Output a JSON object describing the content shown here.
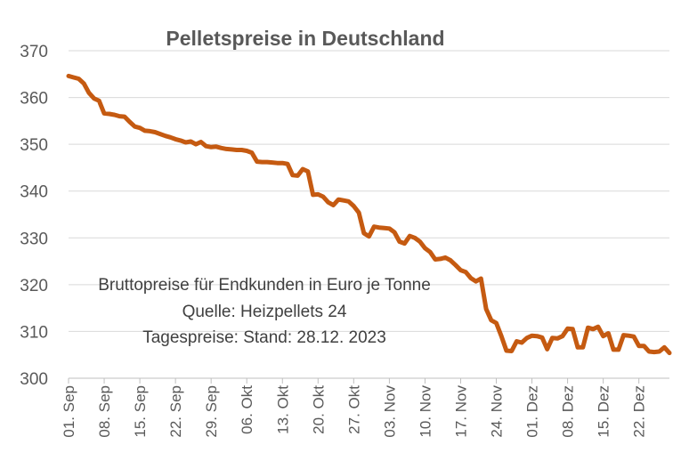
{
  "chart_data": {
    "type": "line",
    "title": "Pelletspreise in Deutschland",
    "ylim": [
      300,
      370
    ],
    "yticks": [
      "300",
      "310",
      "320",
      "330",
      "340",
      "350",
      "360",
      "370"
    ],
    "grid": true,
    "x_tick_labels": [
      "01. Sep",
      "08. Sep",
      "15. Sep",
      "22. Sep",
      "29. Sep",
      "06. Okt",
      "13. Okt",
      "20. Okt",
      "27. Okt",
      "03. Nov",
      "10. Nov",
      "17. Nov",
      "24. Nov",
      "01. Dez",
      "08. Dez",
      "15. Dez",
      "22. Dez"
    ],
    "x_start": "2023-09-01",
    "x_end": "2023-12-28",
    "annotation_lines": [
      "Bruttopreise für Endkunden in Euro je Tonne",
      "Quelle: Heizpellets 24",
      "Tagespreise: Stand: 28.12. 2023"
    ],
    "series": [
      {
        "color": "#c55a11",
        "points": [
          [
            "2023-09-01",
            364.6
          ],
          [
            "2023-09-02",
            364.3
          ],
          [
            "2023-09-03",
            364.0
          ],
          [
            "2023-09-04",
            363.0
          ],
          [
            "2023-09-05",
            361.0
          ],
          [
            "2023-09-06",
            359.8
          ],
          [
            "2023-09-07",
            359.3
          ],
          [
            "2023-09-08",
            356.6
          ],
          [
            "2023-09-09",
            356.5
          ],
          [
            "2023-09-10",
            356.3
          ],
          [
            "2023-09-11",
            356.0
          ],
          [
            "2023-09-12",
            355.9
          ],
          [
            "2023-09-13",
            354.8
          ],
          [
            "2023-09-14",
            353.8
          ],
          [
            "2023-09-15",
            353.5
          ],
          [
            "2023-09-16",
            352.9
          ],
          [
            "2023-09-17",
            352.8
          ],
          [
            "2023-09-18",
            352.6
          ],
          [
            "2023-09-19",
            352.2
          ],
          [
            "2023-09-20",
            351.8
          ],
          [
            "2023-09-21",
            351.5
          ],
          [
            "2023-09-22",
            351.1
          ],
          [
            "2023-09-23",
            350.8
          ],
          [
            "2023-09-24",
            350.4
          ],
          [
            "2023-09-25",
            350.6
          ],
          [
            "2023-09-26",
            350.0
          ],
          [
            "2023-09-27",
            350.5
          ],
          [
            "2023-09-28",
            349.6
          ],
          [
            "2023-09-29",
            349.4
          ],
          [
            "2023-09-30",
            349.5
          ],
          [
            "2023-10-01",
            349.2
          ],
          [
            "2023-10-02",
            349.0
          ],
          [
            "2023-10-03",
            348.9
          ],
          [
            "2023-10-04",
            348.8
          ],
          [
            "2023-10-05",
            348.8
          ],
          [
            "2023-10-06",
            348.6
          ],
          [
            "2023-10-07",
            348.2
          ],
          [
            "2023-10-08",
            346.3
          ],
          [
            "2023-10-09",
            346.2
          ],
          [
            "2023-10-10",
            346.2
          ],
          [
            "2023-10-11",
            346.1
          ],
          [
            "2023-10-12",
            346.0
          ],
          [
            "2023-10-13",
            346.0
          ],
          [
            "2023-10-14",
            345.8
          ],
          [
            "2023-10-15",
            343.4
          ],
          [
            "2023-10-16",
            343.3
          ],
          [
            "2023-10-17",
            344.7
          ],
          [
            "2023-10-18",
            344.2
          ],
          [
            "2023-10-19",
            339.2
          ],
          [
            "2023-10-20",
            339.3
          ],
          [
            "2023-10-21",
            338.8
          ],
          [
            "2023-10-22",
            337.6
          ],
          [
            "2023-10-23",
            337.0
          ],
          [
            "2023-10-24",
            338.2
          ],
          [
            "2023-10-25",
            338.0
          ],
          [
            "2023-10-26",
            337.8
          ],
          [
            "2023-10-27",
            336.8
          ],
          [
            "2023-10-28",
            335.4
          ],
          [
            "2023-10-29",
            331.0
          ],
          [
            "2023-10-30",
            330.3
          ],
          [
            "2023-10-31",
            332.4
          ],
          [
            "2023-11-01",
            332.2
          ],
          [
            "2023-11-02",
            332.1
          ],
          [
            "2023-11-03",
            332.0
          ],
          [
            "2023-11-04",
            331.2
          ],
          [
            "2023-11-05",
            329.2
          ],
          [
            "2023-11-06",
            328.8
          ],
          [
            "2023-11-07",
            330.4
          ],
          [
            "2023-11-08",
            330.0
          ],
          [
            "2023-11-09",
            329.2
          ],
          [
            "2023-11-10",
            327.8
          ],
          [
            "2023-11-11",
            327.0
          ],
          [
            "2023-11-12",
            325.4
          ],
          [
            "2023-11-13",
            325.5
          ],
          [
            "2023-11-14",
            325.8
          ],
          [
            "2023-11-15",
            325.2
          ],
          [
            "2023-11-16",
            324.2
          ],
          [
            "2023-11-17",
            323.1
          ],
          [
            "2023-11-18",
            322.7
          ],
          [
            "2023-11-19",
            321.4
          ],
          [
            "2023-11-20",
            320.7
          ],
          [
            "2023-11-21",
            321.3
          ],
          [
            "2023-11-22",
            314.8
          ],
          [
            "2023-11-23",
            312.4
          ],
          [
            "2023-11-24",
            311.8
          ],
          [
            "2023-11-25",
            309.0
          ],
          [
            "2023-11-26",
            305.9
          ],
          [
            "2023-11-27",
            305.8
          ],
          [
            "2023-11-28",
            307.9
          ],
          [
            "2023-11-29",
            307.6
          ],
          [
            "2023-11-30",
            308.6
          ],
          [
            "2023-12-01",
            309.1
          ],
          [
            "2023-12-02",
            309.0
          ],
          [
            "2023-12-03",
            308.7
          ],
          [
            "2023-12-04",
            306.2
          ],
          [
            "2023-12-05",
            308.6
          ],
          [
            "2023-12-06",
            308.5
          ],
          [
            "2023-12-07",
            309.0
          ],
          [
            "2023-12-08",
            310.6
          ],
          [
            "2023-12-09",
            310.5
          ],
          [
            "2023-12-10",
            306.6
          ],
          [
            "2023-12-11",
            306.6
          ],
          [
            "2023-12-12",
            310.8
          ],
          [
            "2023-12-13",
            310.5
          ],
          [
            "2023-12-14",
            311.0
          ],
          [
            "2023-12-15",
            309.0
          ],
          [
            "2023-12-16",
            309.6
          ],
          [
            "2023-12-17",
            306.1
          ],
          [
            "2023-12-18",
            306.1
          ],
          [
            "2023-12-19",
            309.2
          ],
          [
            "2023-12-20",
            309.1
          ],
          [
            "2023-12-21",
            308.9
          ],
          [
            "2023-12-22",
            306.9
          ],
          [
            "2023-12-23",
            306.9
          ],
          [
            "2023-12-24",
            305.7
          ],
          [
            "2023-12-25",
            305.6
          ],
          [
            "2023-12-26",
            305.7
          ],
          [
            "2023-12-27",
            306.6
          ],
          [
            "2023-12-28",
            305.4
          ]
        ]
      }
    ]
  }
}
